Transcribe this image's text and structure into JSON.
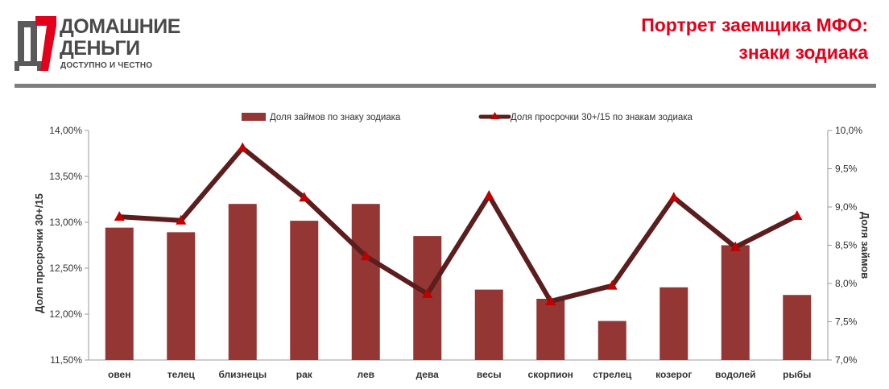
{
  "logo": {
    "line1": "ДОМАШНИЕ",
    "line2": "ДЕНЬГИ",
    "tagline": "ДОСТУПНО И ЧЕСТНО"
  },
  "header": {
    "title_line1": "Портрет заемщика МФО:",
    "title_line2": "знаки зодиака"
  },
  "colors": {
    "title": "#e3001b",
    "bar": "#943634",
    "line": "#5b1d1d",
    "marker": "#c00000",
    "rule": "#7f7f7f"
  },
  "chart_data": {
    "type": "bar",
    "categories": [
      "овен",
      "телец",
      "близнецы",
      "рак",
      "лев",
      "дева",
      "весы",
      "скорпион",
      "стрелец",
      "козерог",
      "водолей",
      "рыбы"
    ],
    "left_axis": {
      "label": "Доля просрочки 30+/15",
      "range": [
        11.5,
        14.0
      ],
      "ticks": [
        "11,50%",
        "12,00%",
        "12,50%",
        "13,00%",
        "13,50%",
        "14,00%"
      ]
    },
    "right_axis": {
      "label": "Доля займов",
      "range": [
        7.0,
        10.0
      ],
      "ticks": [
        "7,0%",
        "7,5%",
        "8,0%",
        "8,5%",
        "9,0%",
        "9,5%",
        "10,0%"
      ]
    },
    "series": [
      {
        "name": "Доля займов по знаку зодиака",
        "type": "bar",
        "axis": "right",
        "values": [
          8.73,
          8.67,
          9.04,
          8.82,
          9.04,
          8.62,
          7.92,
          7.8,
          7.51,
          7.95,
          8.5,
          7.85
        ]
      },
      {
        "name": "Доля просрочки 30+/15 по знакам зодиака",
        "type": "line",
        "axis": "left",
        "values": [
          13.06,
          13.02,
          13.81,
          13.27,
          12.63,
          12.22,
          13.29,
          12.14,
          12.31,
          13.27,
          12.73,
          13.07
        ]
      }
    ],
    "legend": "top",
    "grid": false
  }
}
